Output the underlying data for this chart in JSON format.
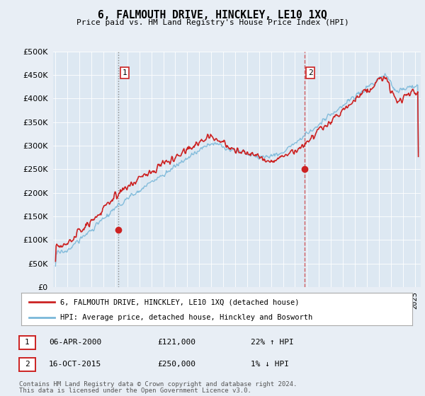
{
  "title": "6, FALMOUTH DRIVE, HINCKLEY, LE10 1XQ",
  "subtitle": "Price paid vs. HM Land Registry's House Price Index (HPI)",
  "legend_line1": "6, FALMOUTH DRIVE, HINCKLEY, LE10 1XQ (detached house)",
  "legend_line2": "HPI: Average price, detached house, Hinckley and Bosworth",
  "annotation1_date": "06-APR-2000",
  "annotation1_price": "£121,000",
  "annotation1_hpi": "22% ↑ HPI",
  "annotation2_date": "16-OCT-2015",
  "annotation2_price": "£250,000",
  "annotation2_hpi": "1% ↓ HPI",
  "footer1": "Contains HM Land Registry data © Crown copyright and database right 2024.",
  "footer2": "This data is licensed under the Open Government Licence v3.0.",
  "sale1_year": 2000.27,
  "sale1_value": 121000,
  "sale2_year": 2015.79,
  "sale2_value": 250000,
  "hpi_color": "#7ab8d9",
  "price_color": "#cc2222",
  "background_color": "#e8eef5",
  "plot_bg": "#dde8f2",
  "ylim": [
    0,
    500000
  ],
  "yticks": [
    0,
    50000,
    100000,
    150000,
    200000,
    250000,
    300000,
    350000,
    400000,
    450000,
    500000
  ],
  "xmin": 1994.8,
  "xmax": 2025.5
}
